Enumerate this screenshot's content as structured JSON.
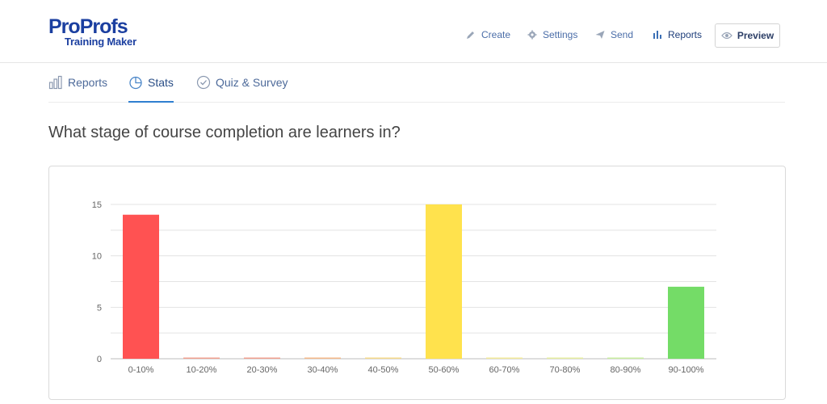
{
  "brand": {
    "name_a": "Pro",
    "name_b": "Profs",
    "product": "Training Maker",
    "color": "#1b3fa0"
  },
  "topnav": {
    "create": "Create",
    "settings": "Settings",
    "send": "Send",
    "reports": "Reports",
    "preview": "Preview"
  },
  "tabs": {
    "reports": "Reports",
    "stats": "Stats",
    "quiz_survey": "Quiz & Survey",
    "active": "Stats"
  },
  "question": "What stage of course completion are learners in?",
  "chart_data": {
    "type": "bar",
    "categories": [
      "0-10%",
      "10-20%",
      "20-30%",
      "30-40%",
      "40-50%",
      "50-60%",
      "60-70%",
      "70-80%",
      "80-90%",
      "90-100%"
    ],
    "values": [
      14,
      0,
      0,
      0,
      0,
      15,
      0,
      0,
      0,
      7
    ],
    "colors": [
      "#ff5252",
      "#f0a090",
      "#f0a090",
      "#f4b98a",
      "#f5d98a",
      "#ffe24d",
      "#f2ea9a",
      "#e6eea0",
      "#c8eea0",
      "#74dc67"
    ],
    "ylim": [
      0,
      15
    ],
    "yticks": [
      0,
      5,
      10,
      15
    ],
    "grid": true,
    "title": "",
    "xlabel": "",
    "ylabel": ""
  }
}
